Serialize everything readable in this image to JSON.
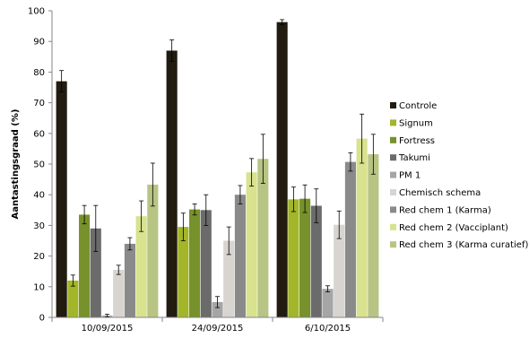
{
  "chart_data": {
    "type": "bar",
    "title": "",
    "xlabel": "",
    "ylabel": "Aantastingsgraad (%)",
    "ylim": [
      0,
      100
    ],
    "yticks": [
      0,
      10,
      20,
      30,
      40,
      50,
      60,
      70,
      80,
      90,
      100
    ],
    "grid": false,
    "legend_position": "right",
    "categories": [
      "10/09/2015",
      "24/09/2015",
      "6/10/2015"
    ],
    "series": [
      {
        "name": "Controle",
        "color": "#211b10",
        "values": [
          77,
          87,
          96.3
        ],
        "errors": [
          3.5,
          3.5,
          0.8
        ]
      },
      {
        "name": "Signum",
        "color": "#a3b529",
        "values": [
          12,
          29.5,
          38.5
        ],
        "errors": [
          1.8,
          4.5,
          4
        ]
      },
      {
        "name": "Fortress",
        "color": "#77912c",
        "values": [
          33.5,
          35.2,
          38.7
        ],
        "errors": [
          3,
          1.8,
          4.5
        ]
      },
      {
        "name": "Takumi",
        "color": "#6b6b6b",
        "values": [
          29,
          35,
          36.4
        ],
        "errors": [
          7.5,
          5,
          5.5
        ]
      },
      {
        "name": "PM 1",
        "color": "#a5a5a5",
        "values": [
          0.6,
          5,
          9.3
        ],
        "errors": [
          0.4,
          1.8,
          1
        ]
      },
      {
        "name": "Chemisch schema",
        "color": "#d8d4d0",
        "values": [
          15.5,
          25,
          30.2
        ],
        "errors": [
          1.5,
          4.5,
          4.5
        ]
      },
      {
        "name": "Red chem 1 (Karma)",
        "color": "#8a8a8a",
        "values": [
          24,
          40,
          50.7
        ],
        "errors": [
          2,
          3,
          3
        ]
      },
      {
        "name": "Red chem 2 (Vacciplant)",
        "color": "#d8e28f",
        "values": [
          33,
          47.3,
          58.3
        ],
        "errors": [
          5,
          4.5,
          8
        ]
      },
      {
        "name": "Red chem 3 (Karma curatief)",
        "color": "#b8c483",
        "values": [
          43.3,
          51.7,
          53.2
        ],
        "errors": [
          7,
          8,
          6.5
        ]
      }
    ]
  }
}
